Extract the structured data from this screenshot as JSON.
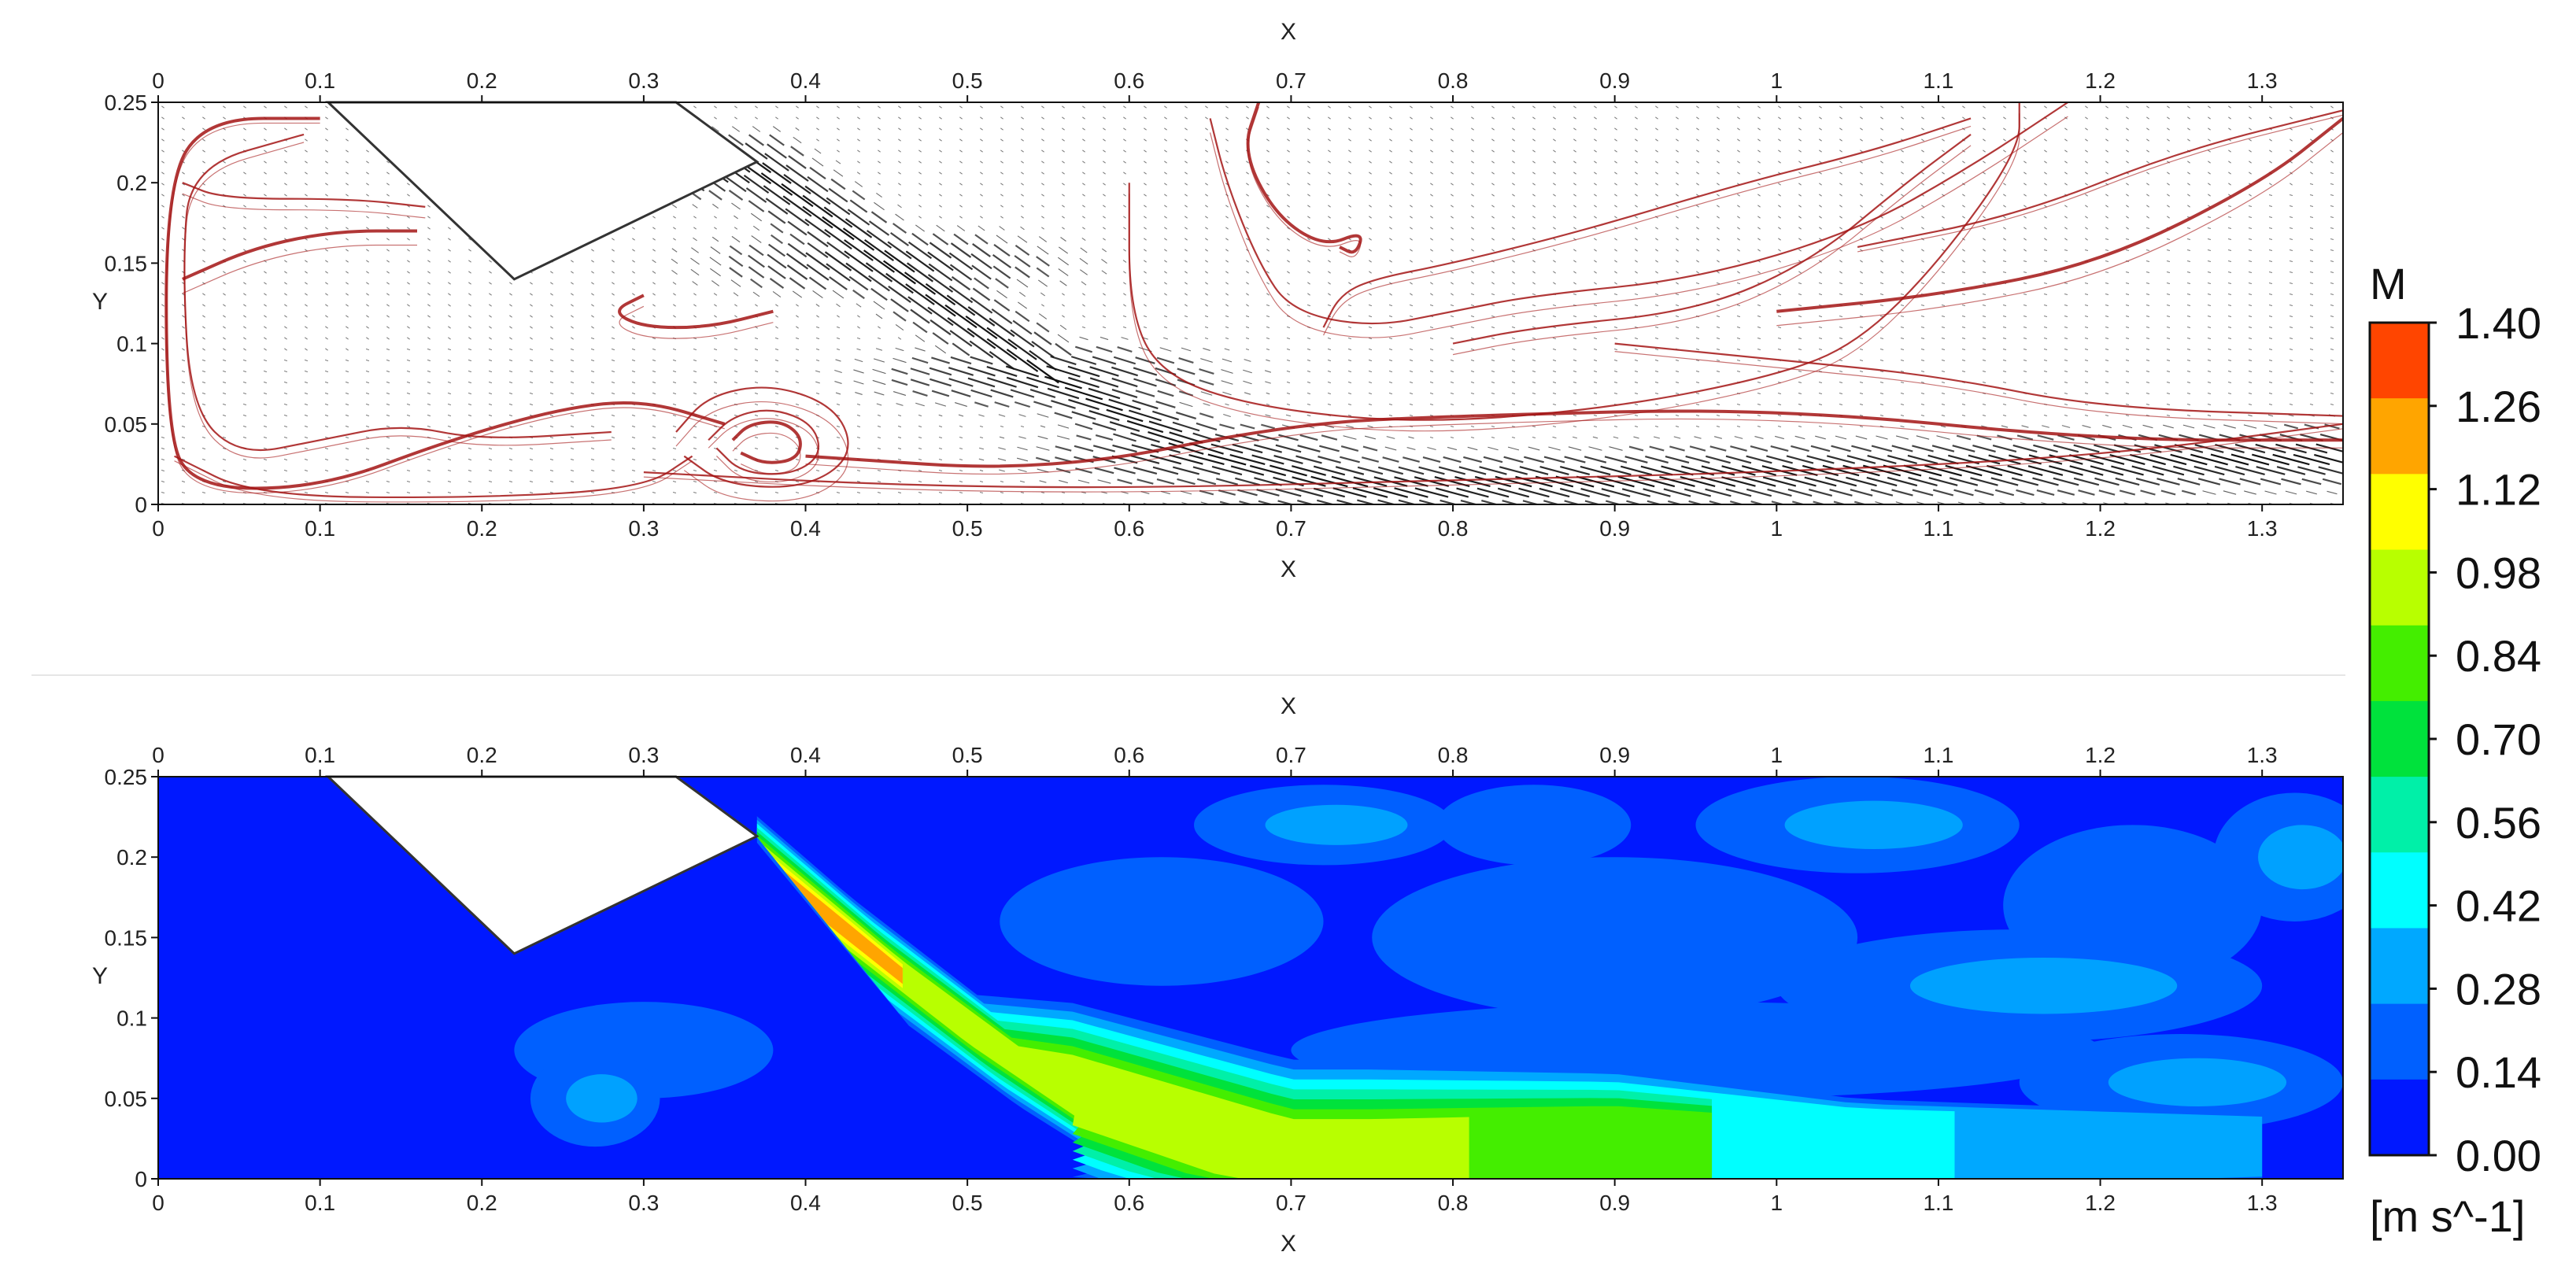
{
  "chart_data": [
    {
      "type": "vector-streamline",
      "panel": "top",
      "xlabel_top": "X",
      "xlabel_bottom": "X",
      "ylabel": "Y",
      "xlim": [
        0,
        1.35
      ],
      "ylim": [
        0,
        0.25
      ],
      "xticks": [
        "0",
        "0.1",
        "0.2",
        "0.3",
        "0.4",
        "0.5",
        "0.6",
        "0.7",
        "0.8",
        "0.9",
        "1",
        "1.1",
        "1.2",
        "1.3"
      ],
      "yticks": [
        "0",
        "0.05",
        "0.1",
        "0.15",
        "0.2",
        "0.25"
      ],
      "plate_outline": [
        [
          0.105,
          0.25
        ],
        [
          0.32,
          0.25
        ],
        [
          0.37,
          0.213
        ],
        [
          0.22,
          0.14
        ]
      ],
      "jet_centerline": [
        [
          0.37,
          0.21
        ],
        [
          0.45,
          0.15
        ],
        [
          0.55,
          0.08
        ],
        [
          0.65,
          0.03
        ],
        [
          0.75,
          0.01
        ],
        [
          0.9,
          0.015
        ],
        [
          1.05,
          0.02
        ],
        [
          1.35,
          0.03
        ]
      ],
      "vortex_center": [
        0.385,
        0.04
      ],
      "streamline_color": "#a31414",
      "vector_color": "#111111"
    },
    {
      "type": "heatmap",
      "panel": "bottom",
      "xlabel_top": "X",
      "xlabel_bottom": "X",
      "ylabel": "Y",
      "xlim": [
        0,
        1.35
      ],
      "ylim": [
        0,
        0.25
      ],
      "xticks": [
        "0",
        "0.1",
        "0.2",
        "0.3",
        "0.4",
        "0.5",
        "0.6",
        "0.7",
        "0.8",
        "0.9",
        "1",
        "1.1",
        "1.2",
        "1.3"
      ],
      "yticks": [
        "0",
        "0.05",
        "0.1",
        "0.15",
        "0.2",
        "0.25"
      ],
      "plate_outline": [
        [
          0.105,
          0.25
        ],
        [
          0.32,
          0.25
        ],
        [
          0.37,
          0.213
        ],
        [
          0.22,
          0.14
        ]
      ],
      "jet_core_max_M": [
        [
          0.4,
          0.175,
          1.35
        ],
        [
          0.48,
          0.11,
          1.1
        ],
        [
          0.55,
          0.06,
          0.9
        ],
        [
          0.7,
          0.012,
          1.05
        ],
        [
          0.75,
          0.012,
          1.05
        ],
        [
          0.9,
          0.02,
          0.85
        ],
        [
          1.05,
          0.02,
          0.5
        ],
        [
          1.3,
          0.02,
          0.35
        ]
      ],
      "background_M": 0.14
    }
  ],
  "colorbar": {
    "title": "M",
    "units": "[m s^-1]",
    "levels": [
      "1.40",
      "1.26",
      "1.12",
      "0.98",
      "0.84",
      "0.70",
      "0.56",
      "0.42",
      "0.28",
      "0.14",
      "0.00"
    ],
    "colors": [
      "#ff4500",
      "#ffa500",
      "#ffff00",
      "#b8ff00",
      "#44ee00",
      "#00e23c",
      "#00f0a8",
      "#00ffff",
      "#00a8ff",
      "#0060ff",
      "#0018ff"
    ]
  }
}
